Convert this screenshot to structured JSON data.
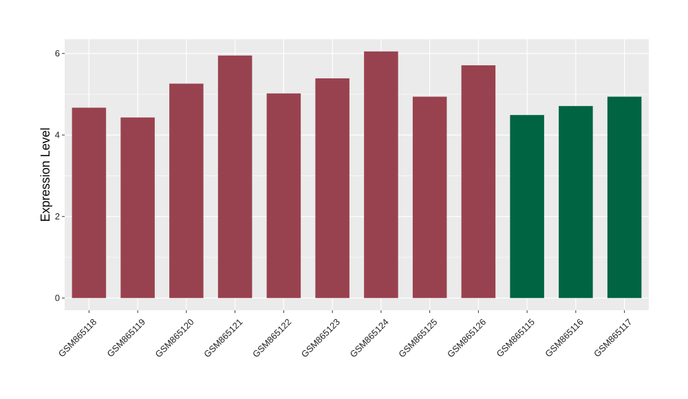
{
  "chart_data": {
    "type": "bar",
    "title": "",
    "xlabel": "",
    "ylabel": "Expression Level",
    "categories": [
      "GSM865118",
      "GSM865119",
      "GSM865120",
      "GSM865121",
      "GSM865122",
      "GSM865123",
      "GSM865124",
      "GSM865125",
      "GSM865126",
      "GSM865115",
      "GSM865116",
      "GSM865117"
    ],
    "values": [
      4.67,
      4.43,
      5.26,
      5.95,
      5.02,
      5.39,
      6.05,
      4.94,
      5.71,
      4.49,
      4.71,
      4.94
    ],
    "bar_colors": [
      "#99424f",
      "#99424f",
      "#99424f",
      "#99424f",
      "#99424f",
      "#99424f",
      "#99424f",
      "#99424f",
      "#99424f",
      "#006442",
      "#006442",
      "#006442"
    ],
    "ylim": [
      -0.3,
      6.35
    ],
    "yticks": [
      0,
      2,
      4,
      6
    ],
    "ytick_labels": [
      "0",
      "2",
      "4",
      "6"
    ],
    "grid": true,
    "panel_background": "#ebebeb",
    "grid_color": "#ffffff"
  }
}
